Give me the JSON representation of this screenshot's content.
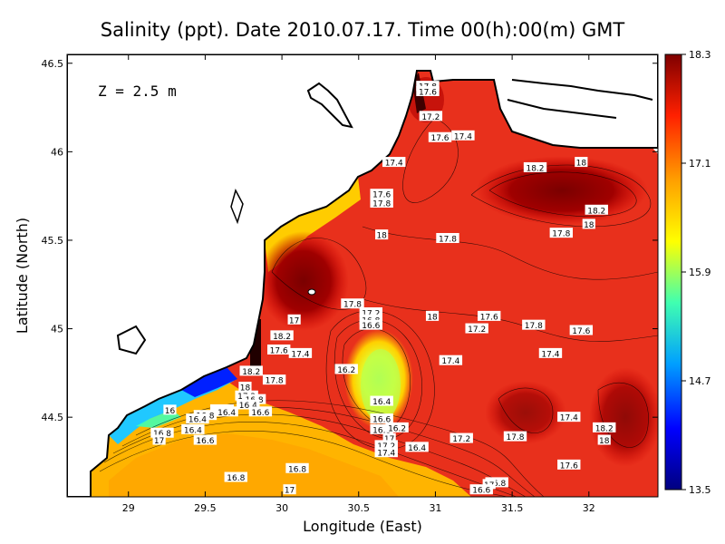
{
  "chart_data": {
    "type": "heatmap",
    "title": "Salinity (ppt). Date 2010.07.17. Time 00(h):00(m) GMT",
    "annotation": "Z = 2.5 m",
    "xlabel": "Longitude (East)",
    "ylabel": "Latitude (North)",
    "xlim": [
      28.6,
      32.45
    ],
    "ylim": [
      44.05,
      46.55
    ],
    "xticks": [
      "29",
      "29.5",
      "30",
      "30.5",
      "31",
      "31.5",
      "32"
    ],
    "xtick_values": [
      29,
      29.5,
      30,
      30.5,
      31,
      31.5,
      32
    ],
    "yticks": [
      "44.5",
      "45",
      "45.5",
      "46",
      "46.5"
    ],
    "ytick_values": [
      44.5,
      45,
      45.5,
      46,
      46.5
    ],
    "colorbar": {
      "range": [
        13.5,
        18.3
      ],
      "ticks": [
        "13.5",
        "14.7",
        "15.9",
        "17.1",
        "18.3"
      ],
      "tick_values": [
        13.5,
        14.7,
        15.9,
        17.1,
        18.3
      ],
      "colors": [
        "#00007f",
        "#0000ff",
        "#00a0ff",
        "#40ffb0",
        "#ffff00",
        "#ffa000",
        "#ff2000",
        "#7f0000"
      ]
    },
    "contour_labels": [
      {
        "lon": 30.95,
        "lat": 46.37,
        "text": "17.8"
      },
      {
        "lon": 30.95,
        "lat": 46.34,
        "text": "17.6"
      },
      {
        "lon": 30.97,
        "lat": 46.2,
        "text": "17.2"
      },
      {
        "lon": 31.03,
        "lat": 46.08,
        "text": "17.6"
      },
      {
        "lon": 31.18,
        "lat": 46.09,
        "text": "17.4"
      },
      {
        "lon": 30.73,
        "lat": 45.94,
        "text": "17.4"
      },
      {
        "lon": 30.65,
        "lat": 45.76,
        "text": "17.6"
      },
      {
        "lon": 30.65,
        "lat": 45.71,
        "text": "17.8"
      },
      {
        "lon": 30.65,
        "lat": 45.53,
        "text": "18"
      },
      {
        "lon": 31.08,
        "lat": 45.51,
        "text": "17.8"
      },
      {
        "lon": 31.65,
        "lat": 45.91,
        "text": "18.2"
      },
      {
        "lon": 31.95,
        "lat": 45.94,
        "text": "18"
      },
      {
        "lon": 32.05,
        "lat": 45.67,
        "text": "18.2"
      },
      {
        "lon": 32.0,
        "lat": 45.59,
        "text": "18"
      },
      {
        "lon": 31.82,
        "lat": 45.54,
        "text": "17.8"
      },
      {
        "lon": 30.46,
        "lat": 45.14,
        "text": "17.8"
      },
      {
        "lon": 30.58,
        "lat": 45.09,
        "text": "17.2"
      },
      {
        "lon": 30.58,
        "lat": 45.05,
        "text": "16.8"
      },
      {
        "lon": 30.58,
        "lat": 45.02,
        "text": "16.6"
      },
      {
        "lon": 30.08,
        "lat": 45.05,
        "text": "17"
      },
      {
        "lon": 30.0,
        "lat": 44.96,
        "text": "18.2"
      },
      {
        "lon": 29.98,
        "lat": 44.88,
        "text": "17.6"
      },
      {
        "lon": 30.12,
        "lat": 44.86,
        "text": "17.4"
      },
      {
        "lon": 30.42,
        "lat": 44.77,
        "text": "16.2"
      },
      {
        "lon": 29.8,
        "lat": 44.76,
        "text": "18.2"
      },
      {
        "lon": 29.95,
        "lat": 44.71,
        "text": "17.8"
      },
      {
        "lon": 29.76,
        "lat": 44.67,
        "text": "18"
      },
      {
        "lon": 29.77,
        "lat": 44.62,
        "text": "17.2"
      },
      {
        "lon": 29.82,
        "lat": 44.6,
        "text": "16.8"
      },
      {
        "lon": 29.78,
        "lat": 44.57,
        "text": "16.4"
      },
      {
        "lon": 29.86,
        "lat": 44.53,
        "text": "16.6"
      },
      {
        "lon": 29.27,
        "lat": 44.54,
        "text": "16"
      },
      {
        "lon": 29.5,
        "lat": 44.51,
        "text": "16.8"
      },
      {
        "lon": 29.45,
        "lat": 44.49,
        "text": "16.4"
      },
      {
        "lon": 29.64,
        "lat": 44.53,
        "text": "16.4"
      },
      {
        "lon": 29.22,
        "lat": 44.41,
        "text": "16.8"
      },
      {
        "lon": 29.42,
        "lat": 44.43,
        "text": "16.4"
      },
      {
        "lon": 29.2,
        "lat": 44.37,
        "text": "17"
      },
      {
        "lon": 29.5,
        "lat": 44.37,
        "text": "16.6"
      },
      {
        "lon": 30.65,
        "lat": 44.59,
        "text": "16.4"
      },
      {
        "lon": 30.65,
        "lat": 44.49,
        "text": "16.6"
      },
      {
        "lon": 30.65,
        "lat": 44.43,
        "text": "16.8"
      },
      {
        "lon": 30.75,
        "lat": 44.44,
        "text": "16.2"
      },
      {
        "lon": 30.7,
        "lat": 44.38,
        "text": "17"
      },
      {
        "lon": 30.68,
        "lat": 44.34,
        "text": "17.2"
      },
      {
        "lon": 30.68,
        "lat": 44.3,
        "text": "17.4"
      },
      {
        "lon": 30.88,
        "lat": 44.33,
        "text": "16.4"
      },
      {
        "lon": 31.17,
        "lat": 44.38,
        "text": "17.2"
      },
      {
        "lon": 30.1,
        "lat": 44.21,
        "text": "16.8"
      },
      {
        "lon": 29.7,
        "lat": 44.16,
        "text": "16.8"
      },
      {
        "lon": 30.05,
        "lat": 44.09,
        "text": "17"
      },
      {
        "lon": 31.4,
        "lat": 44.13,
        "text": "16.8"
      },
      {
        "lon": 31.35,
        "lat": 44.12,
        "text": "17"
      },
      {
        "lon": 31.3,
        "lat": 44.09,
        "text": "16.6"
      },
      {
        "lon": 31.52,
        "lat": 44.39,
        "text": "17.8"
      },
      {
        "lon": 31.87,
        "lat": 44.23,
        "text": "17.6"
      },
      {
        "lon": 31.87,
        "lat": 44.5,
        "text": "17.4"
      },
      {
        "lon": 32.1,
        "lat": 44.44,
        "text": "18.2"
      },
      {
        "lon": 32.1,
        "lat": 44.37,
        "text": "18"
      },
      {
        "lon": 30.98,
        "lat": 45.07,
        "text": "18"
      },
      {
        "lon": 31.35,
        "lat": 45.07,
        "text": "17.6"
      },
      {
        "lon": 31.27,
        "lat": 45.0,
        "text": "17.2"
      },
      {
        "lon": 31.64,
        "lat": 45.02,
        "text": "17.8"
      },
      {
        "lon": 31.95,
        "lat": 44.99,
        "text": "17.6"
      },
      {
        "lon": 31.75,
        "lat": 44.86,
        "text": "17.4"
      },
      {
        "lon": 31.1,
        "lat": 44.82,
        "text": "17.4"
      }
    ]
  }
}
